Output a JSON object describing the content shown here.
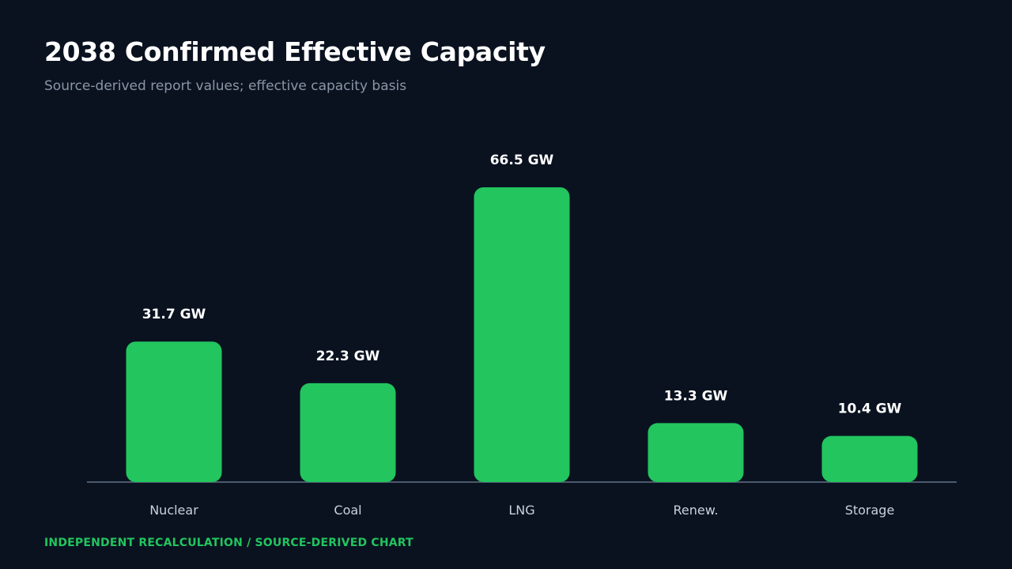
{
  "header": {
    "title": "2038 Confirmed Effective Capacity",
    "subtitle": "Source-derived report values; effective capacity basis"
  },
  "footer": {
    "text": "INDEPENDENT RECALCULATION / SOURCE-DERIVED CHART"
  },
  "colors": {
    "background": "#0a1220",
    "bar": "#22c55e",
    "axis": "#4b5a6b",
    "footer": "#22c55e"
  },
  "chart_data": {
    "type": "bar",
    "title": "2038 Confirmed Effective Capacity",
    "subtitle": "Source-derived report values; effective capacity basis",
    "categories": [
      "Nuclear",
      "Coal",
      "LNG",
      "Renew.",
      "Storage"
    ],
    "values": [
      31.7,
      22.3,
      66.5,
      13.3,
      10.4
    ],
    "value_labels": [
      "31.7 GW",
      "22.3 GW",
      "66.5 GW",
      "13.3 GW",
      "10.4 GW"
    ],
    "unit": "GW",
    "ylim": [
      0,
      66.5
    ],
    "grid": false,
    "legend": "none"
  }
}
